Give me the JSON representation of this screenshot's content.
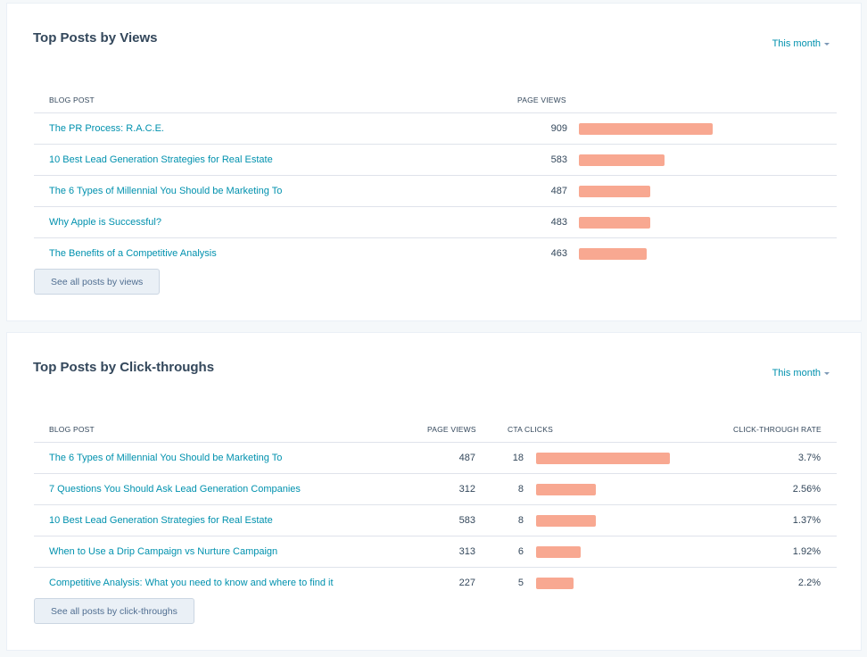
{
  "views_card": {
    "title": "Top Posts by Views",
    "range": "This month",
    "columns": {
      "post": "BLOG POST",
      "views": "PAGE VIEWS"
    },
    "rows": [
      {
        "post": "The PR Process: R.A.C.E.",
        "views": 909
      },
      {
        "post": "10 Best Lead Generation Strategies for Real Estate",
        "views": 583
      },
      {
        "post": "The 6 Types of Millennial You Should be Marketing To",
        "views": 487
      },
      {
        "post": "Why Apple is Successful?",
        "views": 483
      },
      {
        "post": "The Benefits of a Competitive Analysis",
        "views": 463
      }
    ],
    "button": "See all posts by views",
    "bar_color": "#f8a891"
  },
  "clicks_card": {
    "title": "Top Posts by Click-throughs",
    "range": "This month",
    "columns": {
      "post": "BLOG POST",
      "views": "PAGE VIEWS",
      "clicks": "CTA CLICKS",
      "rate": "CLICK-THROUGH RATE"
    },
    "rows": [
      {
        "post": "The 6 Types of Millennial You Should be Marketing To",
        "views": 487,
        "clicks": 18,
        "rate": "3.7%"
      },
      {
        "post": "7 Questions You Should Ask Lead Generation Companies",
        "views": 312,
        "clicks": 8,
        "rate": "2.56%"
      },
      {
        "post": "10 Best Lead Generation Strategies for Real Estate",
        "views": 583,
        "clicks": 8,
        "rate": "1.37%"
      },
      {
        "post": "When to Use a Drip Campaign vs Nurture Campaign",
        "views": 313,
        "clicks": 6,
        "rate": "1.92%"
      },
      {
        "post": "Competitive Analysis: What you need to know and where to find it",
        "views": 227,
        "clicks": 5,
        "rate": "2.2%"
      }
    ],
    "button": "See all posts by click-throughs",
    "bar_color": "#f8a891"
  },
  "colors": {
    "link": "#0091ae",
    "text": "#33475b",
    "bar": "#f8a891"
  }
}
